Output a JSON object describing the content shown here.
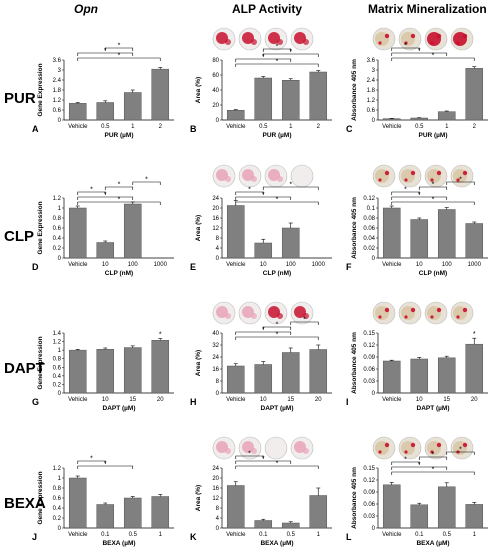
{
  "headers": {
    "opn": "Opn",
    "alp": "ALP Activity",
    "mineral": "Matrix Mineralization"
  },
  "rows": [
    "PUR",
    "CLP",
    "DAPT",
    "BEXA"
  ],
  "colors": {
    "bar": "#808080",
    "bar_stroke": "#555555",
    "well_red": "#c8102e",
    "well_pink": "#e8a3b8",
    "well_beige": "#d9c7a6"
  },
  "chart_data": [
    {
      "panel": "A",
      "type": "bar",
      "categories": [
        "Vehicle",
        "0.5",
        "1",
        "2"
      ],
      "values": [
        1.0,
        1.05,
        1.65,
        3.05
      ],
      "errors": [
        0.05,
        0.1,
        0.15,
        0.1
      ],
      "xlabel": "PUR (µM)",
      "ylabel": "Gene Expression",
      "yticks": [
        "0",
        "0.6",
        "1.2",
        "1.8",
        "2.4",
        "3",
        "3.6"
      ],
      "ylim": [
        0,
        3.6
      ],
      "brackets": [
        [
          0,
          3,
          "*"
        ],
        [
          0,
          2,
          "*"
        ],
        [
          1,
          2,
          "*"
        ]
      ]
    },
    {
      "panel": "B",
      "type": "bar",
      "categories": [
        "Vehicle",
        "0.5",
        "1",
        "2"
      ],
      "values": [
        13,
        56,
        53,
        64
      ],
      "errors": [
        1,
        2,
        2,
        2
      ],
      "xlabel": "PUR (µM)",
      "ylabel": "Area (%)",
      "yticks": [
        "0",
        "20",
        "40",
        "60",
        "80"
      ],
      "ylim": [
        0,
        80
      ],
      "brackets": [
        [
          0,
          3,
          "*"
        ],
        [
          0,
          2,
          "*"
        ],
        [
          1,
          3,
          "*"
        ],
        [
          1,
          2,
          "*"
        ]
      ]
    },
    {
      "panel": "C",
      "type": "bar",
      "categories": [
        "Vehicle",
        "0.5",
        "1",
        "2"
      ],
      "values": [
        0.08,
        0.12,
        0.5,
        3.1
      ],
      "errors": [
        0.02,
        0.02,
        0.04,
        0.1
      ],
      "xlabel": "PUR (µM)",
      "ylabel": "Absorbance 405 nm",
      "yticks": [
        "0",
        "0.6",
        "1.2",
        "1.8",
        "2.4",
        "3",
        "3.6"
      ],
      "ylim": [
        0,
        3.6
      ],
      "brackets": [
        [
          0,
          3,
          "*"
        ],
        [
          0,
          2,
          "*"
        ],
        [
          0,
          1,
          "*"
        ]
      ]
    },
    {
      "panel": "D",
      "type": "bar",
      "categories": [
        "Vehicle",
        "10",
        "100",
        "1000"
      ],
      "values": [
        1.0,
        0.31,
        1.08,
        0
      ],
      "errors": [
        0.04,
        0.03,
        0.04,
        0
      ],
      "xlabel": "CLP (nM)",
      "ylabel": "Gene Expression",
      "yticks": [
        "0",
        "0.2",
        "0.4",
        "0.6",
        "0.8",
        "1",
        "1.2"
      ],
      "ylim": [
        0,
        1.2
      ],
      "brackets": [
        [
          0,
          3,
          "*"
        ],
        [
          0,
          2,
          "*"
        ],
        [
          0,
          1,
          "*"
        ],
        [
          1,
          2,
          "*"
        ],
        [
          2,
          3,
          "*"
        ]
      ]
    },
    {
      "panel": "E",
      "type": "bar",
      "categories": [
        "Vehicle",
        "10",
        "100",
        "1000"
      ],
      "values": [
        21,
        6,
        12,
        0
      ],
      "errors": [
        2,
        1.5,
        2,
        0
      ],
      "xlabel": "CLP (nM)",
      "ylabel": "Area (%)",
      "yticks": [
        "0",
        "4",
        "8",
        "12",
        "16",
        "20",
        "24"
      ],
      "ylim": [
        0,
        24
      ],
      "brackets": [
        [
          0,
          3,
          "*"
        ],
        [
          0,
          2,
          "*"
        ],
        [
          0,
          1,
          "*"
        ],
        [
          1,
          3,
          "*"
        ]
      ]
    },
    {
      "panel": "F",
      "type": "bar",
      "categories": [
        "Vehicle",
        "10",
        "100",
        "1000"
      ],
      "values": [
        0.1,
        0.077,
        0.097,
        0.069
      ],
      "errors": [
        0.004,
        0.003,
        0.004,
        0.003
      ],
      "xlabel": "CLP (nM)",
      "ylabel": "Absorbance 405 nm",
      "yticks": [
        "0",
        "0.02",
        "0.04",
        "0.06",
        "0.08",
        "0.1",
        "0.12"
      ],
      "ylim": [
        0,
        0.12
      ],
      "brackets": [
        [
          0,
          3,
          "*"
        ],
        [
          0,
          2,
          "*"
        ],
        [
          0,
          1,
          "*"
        ],
        [
          1,
          2,
          "*"
        ],
        [
          2,
          3,
          "*"
        ]
      ]
    },
    {
      "panel": "G",
      "type": "bar",
      "categories": [
        "Vehicle",
        "10",
        "15",
        "20"
      ],
      "values": [
        1.0,
        1.02,
        1.06,
        1.23
      ],
      "errors": [
        0.02,
        0.03,
        0.04,
        0.04
      ],
      "xlabel": "DAPT (µM)",
      "ylabel": "Gene Expression",
      "yticks": [
        "0",
        "0.2",
        "0.4",
        "0.6",
        "0.8",
        "1",
        "1.2",
        "1.4"
      ],
      "ylim": [
        0,
        1.4
      ],
      "brackets": [],
      "stars": [
        [
          3,
          "*"
        ]
      ]
    },
    {
      "panel": "H",
      "type": "bar",
      "categories": [
        "Vehicle",
        "10",
        "15",
        "20"
      ],
      "values": [
        18,
        19,
        27,
        29
      ],
      "errors": [
        1.5,
        2,
        3,
        3
      ],
      "xlabel": "DAPT (µM)",
      "ylabel": "Area (%)",
      "yticks": [
        "0",
        "8",
        "16",
        "24",
        "32",
        "40"
      ],
      "ylim": [
        0,
        40
      ],
      "brackets": [
        [
          0,
          3,
          "*"
        ],
        [
          0,
          2,
          "*"
        ],
        [
          1,
          2,
          "*"
        ],
        [
          2,
          3,
          "*"
        ]
      ]
    },
    {
      "panel": "I",
      "type": "bar",
      "categories": [
        "Vehicle",
        "10",
        "15",
        "20"
      ],
      "values": [
        0.08,
        0.085,
        0.088,
        0.122
      ],
      "errors": [
        0.002,
        0.004,
        0.004,
        0.015
      ],
      "xlabel": "DAPT (µM)",
      "ylabel": "Absorbance 405 nm",
      "yticks": [
        "0",
        "0.03",
        "0.06",
        "0.09",
        "0.12",
        "0.15"
      ],
      "ylim": [
        0,
        0.15
      ],
      "brackets": [],
      "stars": [
        [
          3,
          "*"
        ]
      ]
    },
    {
      "panel": "J",
      "type": "bar",
      "categories": [
        "Vehicle",
        "0.1",
        "0.5",
        "1"
      ],
      "values": [
        1.0,
        0.47,
        0.6,
        0.63
      ],
      "errors": [
        0.04,
        0.03,
        0.03,
        0.04
      ],
      "xlabel": "BEXA (µM)",
      "ylabel": "Gene Expression",
      "yticks": [
        "0",
        "0.2",
        "0.4",
        "0.6",
        "0.8",
        "1",
        "1.2"
      ],
      "ylim": [
        0,
        1.2
      ],
      "brackets": [
        [
          0,
          2,
          "*"
        ],
        [
          0,
          1,
          "*"
        ]
      ]
    },
    {
      "panel": "K",
      "type": "bar",
      "categories": [
        "Vehicle",
        "0.1",
        "0.5",
        "1"
      ],
      "values": [
        17,
        3,
        2,
        13
      ],
      "errors": [
        1.5,
        0.5,
        0.5,
        3
      ],
      "xlabel": "BEXA (µM)",
      "ylabel": "Area (%)",
      "yticks": [
        "0",
        "4",
        "8",
        "12",
        "16",
        "20",
        "24"
      ],
      "ylim": [
        0,
        24
      ],
      "brackets": [
        [
          0,
          3,
          "*"
        ],
        [
          0,
          2,
          "*"
        ],
        [
          0,
          1,
          "*"
        ]
      ]
    },
    {
      "panel": "L",
      "type": "bar",
      "categories": [
        "Vehicle",
        "0.1",
        "0.5",
        "1"
      ],
      "values": [
        0.108,
        0.058,
        0.103,
        0.059
      ],
      "errors": [
        0.006,
        0.004,
        0.01,
        0.005
      ],
      "xlabel": "BEXA (µM)",
      "ylabel": "Absorbance 405 nm",
      "yticks": [
        "0",
        "0.03",
        "0.06",
        "0.09",
        "0.12",
        "0.15"
      ],
      "ylim": [
        0,
        0.15
      ],
      "brackets": [
        [
          0,
          3,
          "*"
        ],
        [
          0,
          2,
          "*"
        ],
        [
          0,
          1,
          "*"
        ],
        [
          1,
          2,
          "*"
        ],
        [
          2,
          3,
          "*"
        ]
      ]
    }
  ],
  "wells": {
    "alp_rows": [
      [
        "red",
        "red",
        "red",
        "red"
      ],
      [
        "pink",
        "pink",
        "pink",
        "blank"
      ],
      [
        "pink",
        "pink",
        "red",
        "red"
      ],
      [
        "pink",
        "pink",
        "blank",
        "pink"
      ]
    ],
    "mineral_rows": [
      [
        "beige",
        "beige",
        "red",
        "red"
      ],
      [
        "beige",
        "beige",
        "beige",
        "beige"
      ],
      [
        "beige",
        "beige",
        "beige",
        "beige"
      ],
      [
        "beige",
        "beige",
        "beige",
        "beige"
      ]
    ]
  }
}
